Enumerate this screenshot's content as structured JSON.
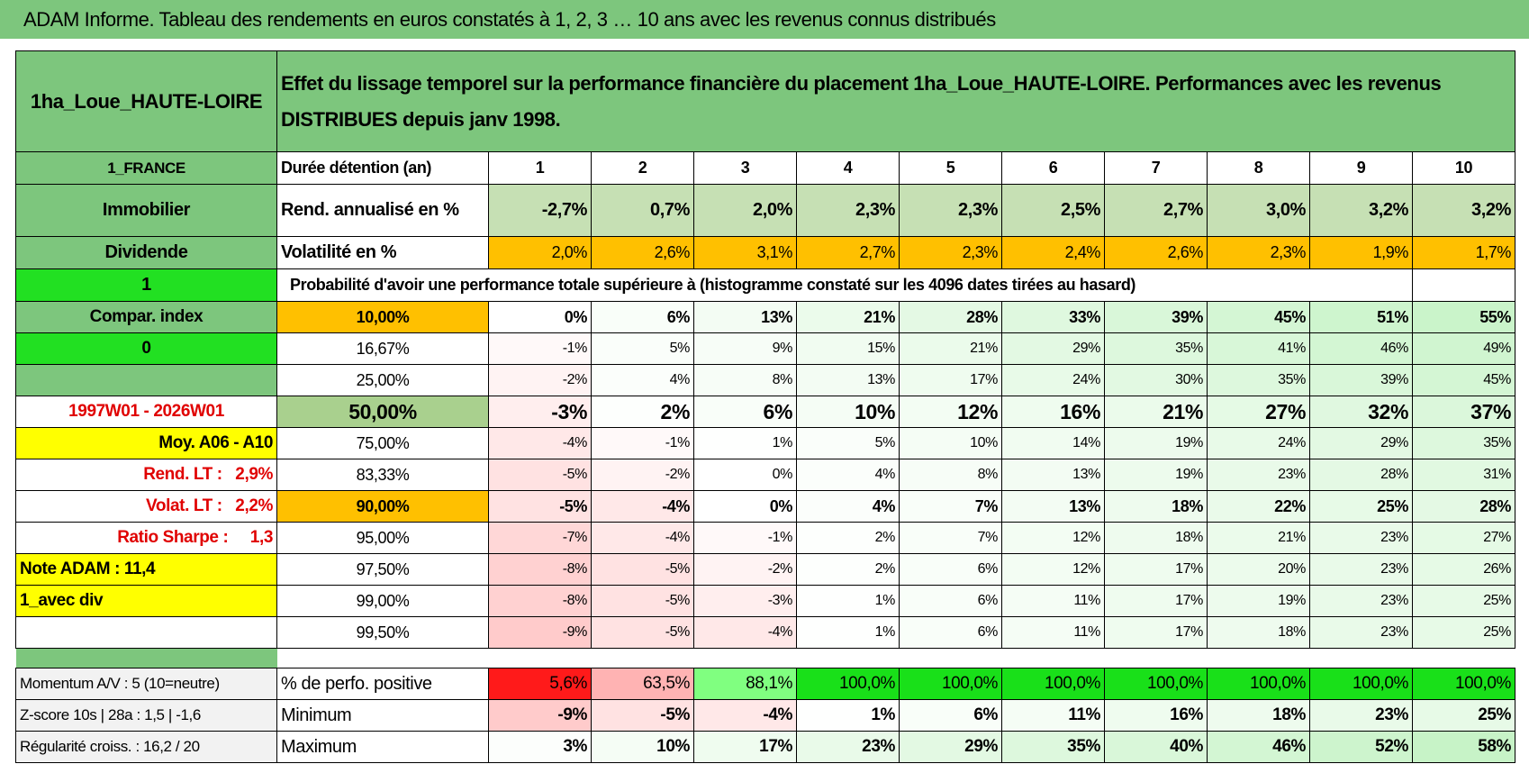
{
  "title": "ADAM Informe. Tableau des rendements en euros constatés à 1, 2, 3 … 10 ans avec les revenus connus distribués",
  "header": {
    "name": "1ha_Loue_HAUTE-LOIRE",
    "description": "Effet du lissage temporel sur la performance financière du placement 1ha_Loue_HAUTE-LOIRE. Performances avec les revenus DISTRIBUES depuis janv 1998."
  },
  "years_row": {
    "left": "1_FRANCE",
    "label": "Durée détention (an)",
    "years": [
      1,
      2,
      3,
      4,
      5,
      6,
      7,
      8,
      9,
      10
    ]
  },
  "summary": [
    {
      "left": "Immobilier",
      "label": "Rend. annualisé en %",
      "values": [
        "-2,7%",
        "0,7%",
        "2,0%",
        "2,3%",
        "2,3%",
        "2,5%",
        "2,7%",
        "3,0%",
        "3,2%",
        "3,2%"
      ]
    },
    {
      "left": "Dividende",
      "label": "Volatilité en %",
      "values": [
        "2,0%",
        "2,6%",
        "3,1%",
        "2,7%",
        "2,3%",
        "2,4%",
        "2,6%",
        "2,3%",
        "1,9%",
        "1,7%"
      ]
    }
  ],
  "probability": {
    "left": "1",
    "title": "Probabilité d'avoir une performance totale supérieure à (histogramme constaté sur les 4096 dates tirées au hasard)"
  },
  "quantiles": [
    {
      "left": "Compar. index",
      "quantile": "10,00%",
      "values": [
        "0%",
        "6%",
        "13%",
        "21%",
        "28%",
        "33%",
        "39%",
        "45%",
        "51%",
        "55%"
      ]
    },
    {
      "left": "0",
      "quantile": "16,67%",
      "values": [
        "-1%",
        "5%",
        "9%",
        "15%",
        "21%",
        "29%",
        "35%",
        "41%",
        "46%",
        "49%"
      ]
    },
    {
      "quantile": "25,00%",
      "values": [
        "-2%",
        "4%",
        "8%",
        "13%",
        "17%",
        "24%",
        "30%",
        "35%",
        "39%",
        "45%"
      ]
    },
    {
      "left": "1997W01 - 2026W01",
      "quantile": "50,00%",
      "values": [
        "-3%",
        "2%",
        "6%",
        "10%",
        "12%",
        "16%",
        "21%",
        "27%",
        "32%",
        "37%"
      ]
    },
    {
      "left": "Moy. A06 - A10",
      "quantile": "75,00%",
      "values": [
        "-4%",
        "-1%",
        "1%",
        "5%",
        "10%",
        "14%",
        "19%",
        "24%",
        "29%",
        "35%"
      ]
    },
    {
      "left": "Rend. LT :   2,9%",
      "quantile": "83,33%",
      "values": [
        "-5%",
        "-2%",
        "0%",
        "4%",
        "8%",
        "13%",
        "19%",
        "23%",
        "28%",
        "31%"
      ]
    },
    {
      "left": "Volat. LT :   2,2%",
      "quantile": "90,00%",
      "values": [
        "-5%",
        "-4%",
        "0%",
        "4%",
        "7%",
        "13%",
        "18%",
        "22%",
        "25%",
        "28%"
      ]
    },
    {
      "left": "Ratio Sharpe :     1,3",
      "quantile": "95,00%",
      "values": [
        "-7%",
        "-4%",
        "-1%",
        "2%",
        "7%",
        "12%",
        "18%",
        "21%",
        "23%",
        "27%"
      ]
    },
    {
      "left": "Note ADAM : 11,4",
      "quantile": "97,50%",
      "values": [
        "-8%",
        "-5%",
        "-2%",
        "2%",
        "6%",
        "12%",
        "17%",
        "20%",
        "23%",
        "26%"
      ]
    },
    {
      "left": "1_avec div",
      "quantile": "99,00%",
      "values": [
        "-8%",
        "-5%",
        "-3%",
        "1%",
        "6%",
        "11%",
        "17%",
        "19%",
        "23%",
        "25%"
      ]
    },
    {
      "quantile": "99,50%",
      "values": [
        "-9%",
        "-5%",
        "-4%",
        "1%",
        "6%",
        "11%",
        "17%",
        "18%",
        "23%",
        "25%"
      ]
    }
  ],
  "footer": [
    {
      "left": "Momentum A/V : 5 (10=neutre)",
      "label": "% de perfo. positive",
      "values": [
        "5,6%",
        "63,5%",
        "88,1%",
        "100,0%",
        "100,0%",
        "100,0%",
        "100,0%",
        "100,0%",
        "100,0%",
        "100,0%"
      ]
    },
    {
      "left": "Z-score 10s | 28a : 1,5 | -1,6",
      "label": "Minimum",
      "values": [
        "-9%",
        "-5%",
        "-4%",
        "1%",
        "6%",
        "11%",
        "16%",
        "18%",
        "23%",
        "25%"
      ]
    },
    {
      "left": "Régularité croiss. : 16,2 / 20",
      "label": "Maximum",
      "values": [
        "3%",
        "10%",
        "17%",
        "23%",
        "29%",
        "35%",
        "40%",
        "46%",
        "52%",
        "58%"
      ]
    }
  ]
}
